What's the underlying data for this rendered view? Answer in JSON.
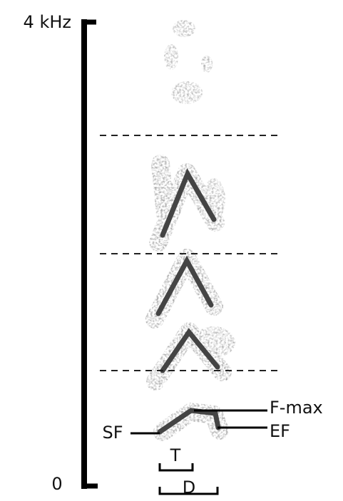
{
  "axis": {
    "top_label": "4 kHz",
    "bottom_label": "0"
  },
  "annotations": {
    "sf": "SF",
    "fmax": "F-max",
    "ef": "EF",
    "t": "T",
    "d": "D"
  }
}
